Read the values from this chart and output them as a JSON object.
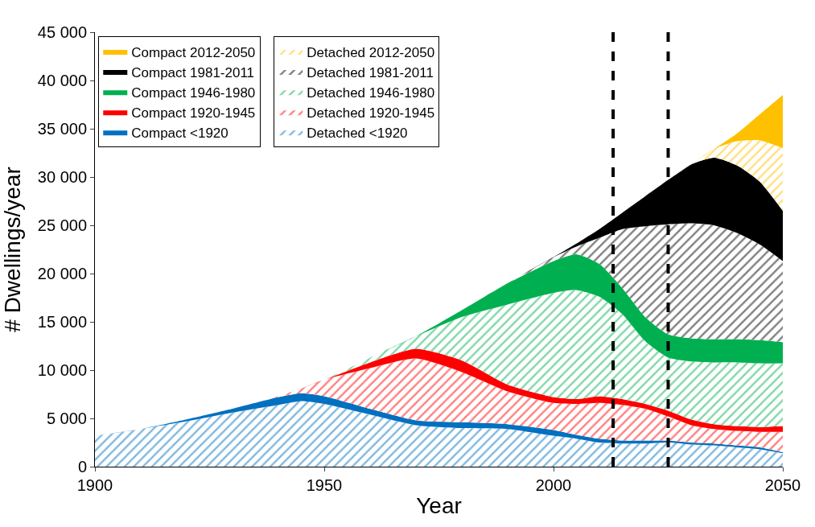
{
  "chart_data": {
    "type": "area",
    "stacked": true,
    "xlabel": "Year",
    "ylabel": "# Dwellings/year",
    "x": [
      1900,
      1910,
      1920,
      1930,
      1940,
      1945,
      1950,
      1960,
      1970,
      1980,
      1990,
      2000,
      2005,
      2010,
      2015,
      2020,
      2025,
      2030,
      2035,
      2040,
      2045,
      2050
    ],
    "series": [
      {
        "name": "Detached <1920",
        "color": "#0070c0",
        "values": [
          3200,
          3900,
          4700,
          5600,
          6400,
          6800,
          6500,
          5400,
          4300,
          4000,
          3900,
          3200,
          2900,
          2500,
          2400,
          2400,
          2500,
          2300,
          2200,
          2000,
          1800,
          1400
        ]
      },
      {
        "name": "Compact <1920",
        "color": "#0070c0",
        "values": [
          0,
          0,
          200,
          400,
          800,
          800,
          800,
          600,
          500,
          600,
          500,
          600,
          400,
          400,
          300,
          300,
          200,
          200,
          200,
          200,
          200,
          100
        ]
      },
      {
        "name": "Detached 1920-1945",
        "color": "#ff0000",
        "values": [
          0,
          0,
          0,
          0,
          100,
          500,
          1700,
          4200,
          6400,
          5200,
          3400,
          2800,
          3200,
          3700,
          3700,
          3300,
          2500,
          1800,
          1500,
          1500,
          1600,
          2100
        ]
      },
      {
        "name": "Compact 1920-1945",
        "color": "#ff0000",
        "values": [
          0,
          0,
          0,
          0,
          0,
          0,
          0,
          600,
          1000,
          1200,
          700,
          600,
          500,
          700,
          600,
          500,
          600,
          600,
          500,
          500,
          500,
          600
        ]
      },
      {
        "name": "Detached 1946-1980",
        "color": "#00b050",
        "values": [
          0,
          0,
          0,
          0,
          0,
          0,
          0,
          500,
          1300,
          4500,
          8300,
          10800,
          11300,
          10300,
          8800,
          6500,
          5500,
          6000,
          6400,
          6600,
          6600,
          6500
        ]
      },
      {
        "name": "Compact 1946-1980",
        "color": "#00b050",
        "values": [
          0,
          0,
          0,
          0,
          0,
          0,
          0,
          0,
          0,
          700,
          2200,
          3300,
          3700,
          3400,
          2700,
          2500,
          2400,
          2400,
          2400,
          2400,
          2400,
          2200
        ]
      },
      {
        "name": "Detached 1981-2011",
        "color": "#000000",
        "values": [
          0,
          0,
          0,
          0,
          0,
          0,
          0,
          0,
          0,
          0,
          0,
          400,
          800,
          2700,
          6100,
          9400,
          11400,
          11900,
          11800,
          11000,
          9900,
          8400
        ]
      },
      {
        "name": "Compact 1981-2011",
        "color": "#000000",
        "values": [
          0,
          0,
          0,
          0,
          0,
          0,
          0,
          0,
          0,
          0,
          0,
          0,
          300,
          900,
          1700,
          3100,
          4600,
          6100,
          7000,
          7000,
          6500,
          5200
        ]
      },
      {
        "name": "Detached 2012-2050",
        "color": "#ffc000",
        "values": [
          0,
          0,
          0,
          0,
          0,
          0,
          0,
          0,
          0,
          0,
          0,
          0,
          0,
          0,
          0,
          0,
          0,
          0,
          900,
          2500,
          4300,
          6500
        ]
      },
      {
        "name": "Compact 2012-2050",
        "color": "#ffc000",
        "values": [
          0,
          0,
          0,
          0,
          0,
          0,
          0,
          0,
          0,
          0,
          0,
          0,
          0,
          0,
          0,
          0,
          0,
          0,
          0,
          800,
          2700,
          5500
        ]
      }
    ],
    "xlim": [
      1900,
      2050
    ],
    "xticks": [
      1900,
      1950,
      2000,
      2050
    ],
    "ylim": [
      0,
      45000
    ],
    "yticks": [
      {
        "value": 0,
        "label": "0"
      },
      {
        "value": 5000,
        "label": "5 000"
      },
      {
        "value": 10000,
        "label": "10 000"
      },
      {
        "value": 15000,
        "label": "15 000"
      },
      {
        "value": 20000,
        "label": "20 000"
      },
      {
        "value": 25000,
        "label": "25 000"
      },
      {
        "value": 30000,
        "label": "30 000"
      },
      {
        "value": 35000,
        "label": "35 000"
      },
      {
        "value": 40000,
        "label": "40 000"
      },
      {
        "value": 45000,
        "label": "45 000"
      }
    ],
    "ref_lines": [
      {
        "axis": "x",
        "value": 2013,
        "color": "#000000",
        "line_style": "dashed"
      },
      {
        "axis": "x",
        "value": 2025,
        "color": "#000000",
        "line_style": "dashed"
      }
    ],
    "legend": "top left"
  }
}
